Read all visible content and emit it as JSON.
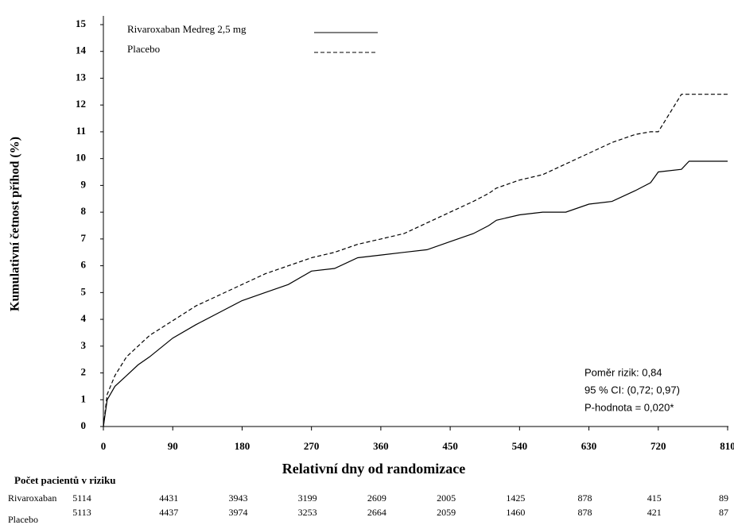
{
  "chart_data": {
    "type": "line",
    "y_label": "Kumulativní četnost příhod (%)",
    "x_label": "Relativní dny od randomizace",
    "x": [
      0,
      5,
      15,
      30,
      45,
      60,
      90,
      120,
      150,
      180,
      210,
      240,
      270,
      300,
      330,
      360,
      390,
      420,
      450,
      480,
      500,
      510,
      540,
      570,
      600,
      630,
      660,
      690,
      710,
      720,
      750,
      760,
      810
    ],
    "series": [
      {
        "name": "Rivaroxaban Medreg 2,5 mg",
        "color": "#000000",
        "dash": false,
        "values": [
          0,
          1.0,
          1.5,
          1.9,
          2.3,
          2.6,
          3.3,
          3.8,
          4.25,
          4.7,
          5.0,
          5.3,
          5.8,
          5.9,
          6.3,
          6.4,
          6.5,
          6.6,
          6.9,
          7.2,
          7.5,
          7.7,
          7.9,
          8.0,
          8.0,
          8.3,
          8.4,
          8.8,
          9.1,
          9.5,
          9.6,
          9.9,
          9.9
        ]
      },
      {
        "name": "Placebo",
        "color": "#000000",
        "dash": true,
        "values": [
          0,
          1.2,
          1.9,
          2.6,
          3.0,
          3.4,
          3.95,
          4.5,
          4.9,
          5.3,
          5.7,
          6.0,
          6.3,
          6.5,
          6.8,
          7.0,
          7.2,
          7.6,
          8.0,
          8.4,
          8.7,
          8.9,
          9.2,
          9.4,
          9.8,
          10.2,
          10.6,
          10.9,
          11.0,
          11.0,
          12.4,
          12.4,
          12.4
        ]
      }
    ],
    "xlim": [
      0,
      810
    ],
    "xticks": [
      0,
      90,
      180,
      270,
      360,
      450,
      540,
      630,
      720,
      810
    ],
    "ylim": [
      0,
      15
    ],
    "yticks": [
      0,
      1,
      2,
      3,
      4,
      5,
      6,
      7,
      8,
      9,
      10,
      11,
      12,
      13,
      14,
      15
    ],
    "grid": false,
    "annotations": [
      "Poměr rizik: 0,84",
      "95 % CI:  (0,72; 0,97)",
      "P-hodnota = 0,020*"
    ],
    "risk_table": {
      "title": "Počet pacientů v riziku",
      "rows": [
        {
          "name": "Rivaroxaban",
          "values": [
            5114,
            4431,
            3943,
            3199,
            2609,
            2005,
            1425,
            878,
            415,
            89
          ]
        },
        {
          "name": "Placebo",
          "values": [
            5113,
            4437,
            3974,
            3253,
            2664,
            2059,
            1460,
            878,
            421,
            87
          ]
        }
      ]
    }
  }
}
